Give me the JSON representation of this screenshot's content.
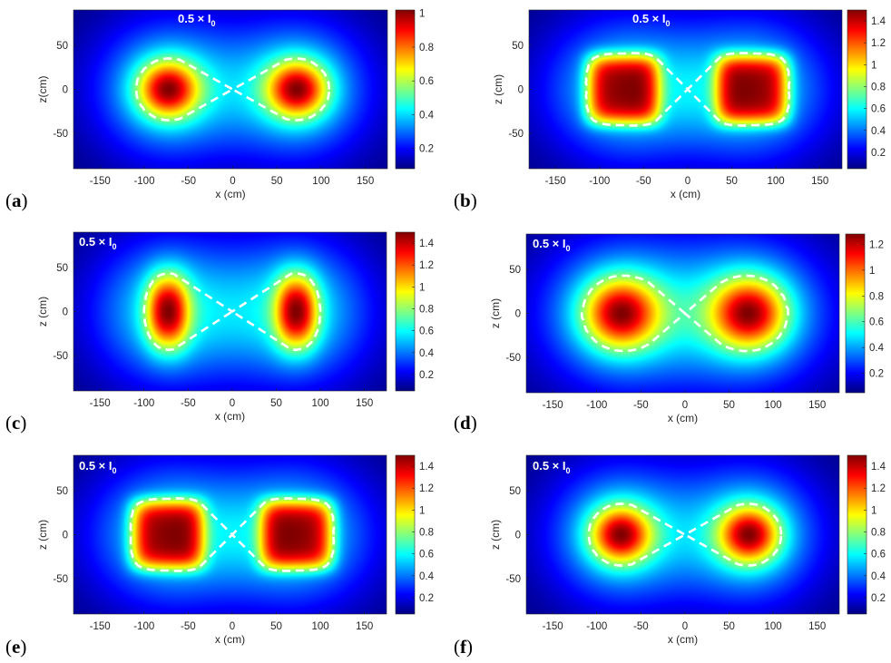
{
  "chart_data": [
    {
      "type": "heatmap",
      "panel_label": "a",
      "annotation": "0.5 × I",
      "annotation_sub": "0",
      "xlabel": "x (cm)",
      "ylabel": "z(cm)",
      "xlim": [
        -180,
        175
      ],
      "ylim": [
        -90,
        90
      ],
      "xticks": [
        "-150",
        "-100",
        "-50",
        "0",
        "50",
        "100",
        "150"
      ],
      "xtick_values": [
        -150,
        -100,
        -50,
        0,
        50,
        100,
        150
      ],
      "yticks": [
        "50",
        "0",
        "-50"
      ],
      "ytick_values": [
        50,
        0,
        -50
      ],
      "colorbar_ticks": [
        "1",
        "0.8",
        "0.6",
        "0.4",
        "0.2"
      ],
      "colorbar_tick_values": [
        1,
        0.8,
        0.6,
        0.4,
        0.2
      ],
      "colorbar_range": [
        0.08,
        1.02
      ],
      "peak_centers_x": [
        -73,
        73
      ],
      "source_shape": "round",
      "contour_label": "0.5 × I0"
    },
    {
      "type": "heatmap",
      "panel_label": "b",
      "annotation": "0.5 × I",
      "annotation_sub": "0",
      "xlabel": "x (cm)",
      "ylabel": "z (cm)",
      "xlim": [
        -180,
        175
      ],
      "ylim": [
        -90,
        90
      ],
      "xticks": [
        "-150",
        "-100",
        "-50",
        "0",
        "50",
        "100",
        "150"
      ],
      "xtick_values": [
        -150,
        -100,
        -50,
        0,
        50,
        100,
        150
      ],
      "yticks": [
        "50",
        "0",
        "-50"
      ],
      "ytick_values": [
        50,
        0,
        -50
      ],
      "colorbar_ticks": [
        "1.4",
        "1.2",
        "1",
        "0.8",
        "0.6",
        "0.4",
        "0.2"
      ],
      "colorbar_tick_values": [
        1.4,
        1.2,
        1,
        0.8,
        0.6,
        0.4,
        0.2
      ],
      "colorbar_range": [
        0.05,
        1.5
      ],
      "peak_centers_x": [
        -73,
        73
      ],
      "source_shape": "square",
      "contour_label": "0.5 × I0"
    },
    {
      "type": "heatmap",
      "panel_label": "c",
      "annotation": "0.5 × I",
      "annotation_sub": "0",
      "xlabel": "x (cm)",
      "ylabel": "z (cm)",
      "xlim": [
        -180,
        175
      ],
      "ylim": [
        -90,
        90
      ],
      "xticks": [
        "-150",
        "-100",
        "-50",
        "0",
        "50",
        "100",
        "150"
      ],
      "xtick_values": [
        -150,
        -100,
        -50,
        0,
        50,
        100,
        150
      ],
      "yticks": [
        "50",
        "0",
        "-50"
      ],
      "ytick_values": [
        50,
        0,
        -50
      ],
      "colorbar_ticks": [
        "1.4",
        "1.2",
        "1",
        "0.8",
        "0.6",
        "0.4",
        "0.2"
      ],
      "colorbar_tick_values": [
        1.4,
        1.2,
        1,
        0.8,
        0.6,
        0.4,
        0.2
      ],
      "colorbar_range": [
        0.05,
        1.5
      ],
      "peak_centers_x": [
        -73,
        73
      ],
      "source_shape": "tall",
      "contour_label": "0.5 × I0"
    },
    {
      "type": "heatmap",
      "panel_label": "d",
      "annotation": "0.5 × I",
      "annotation_sub": "0",
      "xlabel": "x (cm)",
      "ylabel": "z (cm)",
      "xlim": [
        -180,
        175
      ],
      "ylim": [
        -90,
        90
      ],
      "xticks": [
        "-150",
        "-100",
        "-50",
        "0",
        "50",
        "100",
        "150"
      ],
      "xtick_values": [
        -150,
        -100,
        -50,
        0,
        50,
        100,
        150
      ],
      "yticks": [
        "50",
        "0",
        "-50"
      ],
      "ytick_values": [
        50,
        0,
        -50
      ],
      "colorbar_ticks": [
        "1.2",
        "1",
        "0.8",
        "0.6",
        "0.4",
        "0.2"
      ],
      "colorbar_tick_values": [
        1.2,
        1,
        0.8,
        0.6,
        0.4,
        0.2
      ],
      "colorbar_range": [
        0.05,
        1.28
      ],
      "peak_centers_x": [
        -73,
        73
      ],
      "source_shape": "wide",
      "contour_label": "0.5 × I0"
    },
    {
      "type": "heatmap",
      "panel_label": "e",
      "annotation": "0.5 × I",
      "annotation_sub": "0",
      "xlabel": "x (cm)",
      "ylabel": "z (cm)",
      "xlim": [
        -180,
        175
      ],
      "ylim": [
        -90,
        90
      ],
      "xticks": [
        "-150",
        "-100",
        "-50",
        "0",
        "50",
        "100",
        "150"
      ],
      "xtick_values": [
        -150,
        -100,
        -50,
        0,
        50,
        100,
        150
      ],
      "yticks": [
        "50",
        "0",
        "-50"
      ],
      "ytick_values": [
        50,
        0,
        -50
      ],
      "colorbar_ticks": [
        "1.4",
        "1.2",
        "1",
        "0.8",
        "0.6",
        "0.4",
        "0.2"
      ],
      "colorbar_tick_values": [
        1.4,
        1.2,
        1,
        0.8,
        0.6,
        0.4,
        0.2
      ],
      "colorbar_range": [
        0.05,
        1.5
      ],
      "peak_centers_x": [
        -73,
        73
      ],
      "source_shape": "square",
      "contour_label": "0.5 × I0"
    },
    {
      "type": "heatmap",
      "panel_label": "f",
      "annotation": "0.5 × I",
      "annotation_sub": "0",
      "xlabel": "x (cm)",
      "ylabel": "z (cm)",
      "xlim": [
        -180,
        175
      ],
      "ylim": [
        -90,
        90
      ],
      "xticks": [
        "-150",
        "-100",
        "-50",
        "0",
        "50",
        "100",
        "150"
      ],
      "xtick_values": [
        -150,
        -100,
        -50,
        0,
        50,
        100,
        150
      ],
      "yticks": [
        "50",
        "0",
        "-50"
      ],
      "ytick_values": [
        50,
        0,
        -50
      ],
      "colorbar_ticks": [
        "1.4",
        "1.2",
        "1",
        "0.8",
        "0.6",
        "0.4",
        "0.2"
      ],
      "colorbar_tick_values": [
        1.4,
        1.2,
        1,
        0.8,
        0.6,
        0.4,
        0.2
      ],
      "colorbar_range": [
        0.05,
        1.5
      ],
      "peak_centers_x": [
        -73,
        73
      ],
      "source_shape": "round",
      "contour_label": "0.5 × I0"
    }
  ],
  "colors": {
    "colormap": "jet",
    "contour": "#ffffff",
    "axis_text": "#262626"
  }
}
